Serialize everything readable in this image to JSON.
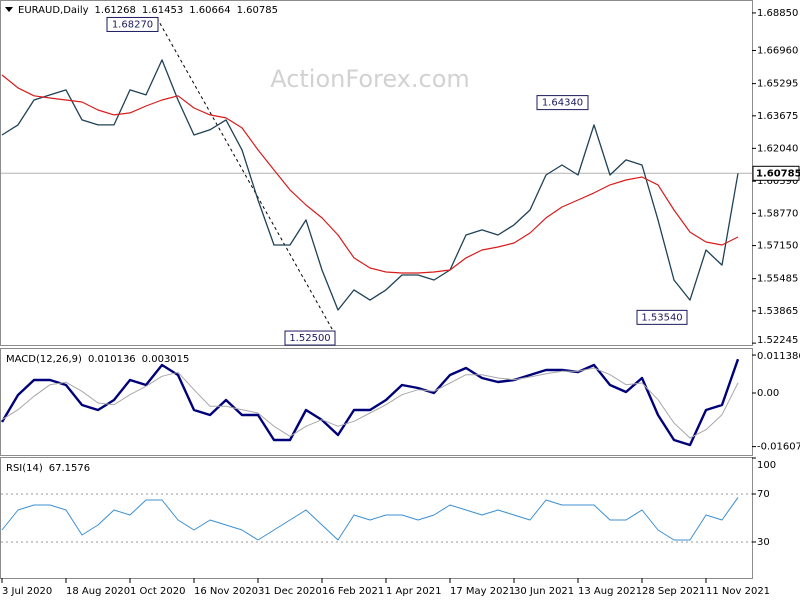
{
  "chart_data": [
    {
      "type": "line",
      "title": "EURAUD,Daily",
      "watermark": "ActionForex.com",
      "ohlc": [
        1.61268,
        1.61453,
        1.60664
      ],
      "categories": [
        "3 Jul 2020",
        null,
        null,
        null,
        "18 Aug 2020",
        null,
        null,
        null,
        "1 Oct 2020",
        null,
        null,
        null,
        "16 Nov 2020",
        null,
        null,
        null,
        "31 Dec 2020",
        null,
        null,
        null,
        "16 Feb 2021",
        null,
        null,
        null,
        "1 Apr 2021",
        null,
        null,
        null,
        "17 May 2021",
        null,
        null,
        null,
        "30 Jun 2021",
        null,
        null,
        null,
        "13 Aug 2021",
        null,
        null,
        null,
        "28 Sep 2021",
        null,
        null,
        null,
        "11 Nov 2021",
        null,
        null
      ],
      "series": [
        {
          "color": "#1f4257",
          "values": [
            1.6271,
            1.6322,
            1.6447,
            1.6473,
            1.6498,
            1.6347,
            1.6322,
            1.6322,
            1.6498,
            1.6473,
            1.6649,
            1.6447,
            1.6271,
            1.6297,
            1.6347,
            1.6196,
            1.5944,
            1.5718,
            1.5718,
            1.5844,
            1.5592,
            1.5391,
            1.5492,
            1.5441,
            1.5492,
            1.5567,
            1.5567,
            1.5542,
            1.5592,
            1.5768,
            1.5794,
            1.5768,
            1.5819,
            1.5894,
            1.607,
            1.612,
            1.607,
            1.6322,
            1.607,
            1.6146,
            1.612,
            1.5844,
            1.5542,
            1.5441,
            1.5693,
            1.5617,
            1.60785
          ]
        },
        {
          "color": "#d81c1c",
          "values": [
            1.6573,
            1.6508,
            1.6468,
            1.6457,
            1.6447,
            1.6437,
            1.6397,
            1.6372,
            1.6382,
            1.6417,
            1.6447,
            1.6468,
            1.6407,
            1.6372,
            1.6357,
            1.6307,
            1.6196,
            1.6095,
            1.5995,
            1.5919,
            1.5854,
            1.5768,
            1.5653,
            1.5602,
            1.5582,
            1.5577,
            1.5577,
            1.5582,
            1.5592,
            1.5653,
            1.5693,
            1.5708,
            1.5728,
            1.5778,
            1.5854,
            1.5909,
            1.5944,
            1.598,
            1.602,
            1.6045,
            1.606,
            1.602,
            1.5894,
            1.5783,
            1.5733,
            1.5718,
            1.5758
          ]
        }
      ],
      "annotations": [
        {
          "value": 1.6827,
          "label": "1.68270"
        },
        {
          "value": 1.525,
          "label": "1.52500"
        },
        {
          "value": 1.6434,
          "label": "1.64340"
        },
        {
          "value": 1.5354,
          "label": "1.53540"
        }
      ],
      "ylim": [
        1.5215,
        1.695
      ],
      "yticks": [
        {
          "value": 1.6885,
          "label": "1.68850"
        },
        {
          "value": 1.6696,
          "label": "1.66960"
        },
        {
          "value": 1.65295,
          "label": "1.65295"
        },
        {
          "value": 1.63675,
          "label": "1.63675"
        },
        {
          "value": 1.6204,
          "label": "1.62040"
        },
        {
          "value": 1.6039,
          "label": "1.60390"
        },
        {
          "value": 1.5877,
          "label": "1.58770"
        },
        {
          "value": 1.5715,
          "label": "1.57150"
        },
        {
          "value": 1.55485,
          "label": "1.55485"
        },
        {
          "value": 1.53865,
          "label": "1.53865"
        },
        {
          "value": 1.52245,
          "label": "1.52245"
        }
      ],
      "grid": false
    },
    {
      "type": "line",
      "title": "MACD(12,26,9)",
      "series": [
        {
          "color": "#00007a",
          "values": [
            -0.0087,
            -0.0006,
            0.0039,
            0.0039,
            0.0024,
            -0.0036,
            -0.0051,
            -0.0021,
            0.0039,
            0.0024,
            0.0084,
            0.0054,
            -0.0051,
            -0.0066,
            -0.0021,
            -0.0066,
            -0.0066,
            -0.0141,
            -0.0141,
            -0.0051,
            -0.0081,
            -0.0126,
            -0.0051,
            -0.0051,
            -0.0021,
            0.0024,
            0.0015,
            0,
            0.0054,
            0.0075,
            0.0045,
            0.0033,
            0.0039,
            0.0054,
            0.0069,
            0.0069,
            0.0063,
            0.0084,
            0.0024,
            0.0003,
            0.0045,
            -0.0066,
            -0.0141,
            -0.0156,
            -0.0051,
            -0.0036,
            0.010136
          ]
        },
        {
          "color": "#a8a8a8",
          "values": [
            -0.008,
            -0.005,
            -0.001,
            0.0025,
            0.0032,
            0.0005,
            -0.003,
            -0.0035,
            -0.0005,
            0.002,
            0.005,
            0.0062,
            0.001,
            -0.004,
            -0.004,
            -0.005,
            -0.006,
            -0.01,
            -0.013,
            -0.01,
            -0.008,
            -0.01,
            -0.0085,
            -0.006,
            -0.0035,
            -0.0005,
            0.001,
            0.0005,
            0.003,
            0.0055,
            0.0055,
            0.0045,
            0.004,
            0.0048,
            0.0058,
            0.0065,
            0.0065,
            0.0075,
            0.0055,
            0.0025,
            0.003,
            -0.002,
            -0.009,
            -0.0135,
            -0.011,
            -0.0065,
            0.003015
          ]
        }
      ],
      "ylim": [
        -0.0186,
        0.0132
      ],
      "yticks": [
        0.011386,
        {
          "value": 0,
          "label": "0.00"
        },
        -0.016077
      ],
      "grid": false
    },
    {
      "type": "line",
      "title": "RSI(14)",
      "series": [
        {
          "color": "#3c8fd2",
          "values": [
            40.0,
            56.7,
            60.8,
            60.8,
            56.7,
            35.8,
            44.2,
            56.7,
            52.5,
            65.0,
            65.0,
            48.3,
            40.0,
            48.3,
            44.2,
            40.0,
            31.7,
            40.0,
            48.3,
            56.7,
            44.2,
            31.7,
            52.5,
            48.3,
            52.5,
            52.5,
            48.3,
            52.5,
            60.8,
            56.7,
            52.5,
            56.7,
            52.5,
            48.3,
            65.0,
            60.8,
            60.8,
            60.8,
            48.3,
            48.3,
            56.7,
            40.0,
            31.7,
            31.7,
            52.5,
            48.3,
            67.1576
          ]
        }
      ],
      "ylim": [
        0,
        100
      ],
      "yticks": [
        100,
        70,
        30
      ],
      "grid": "dotted"
    }
  ]
}
